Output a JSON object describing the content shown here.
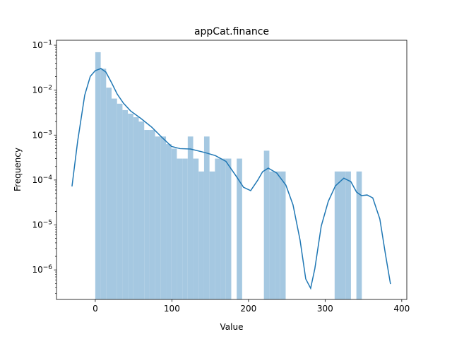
{
  "chart_data": {
    "type": "histogram",
    "title": "appCat.finance",
    "xlabel": "Value",
    "ylabel": "Frequency",
    "bins": [
      0,
      7.1,
      14.2,
      21.3,
      28.4,
      35.5,
      42.6,
      49.7,
      56.8,
      63.9,
      71,
      78.1,
      85.2,
      92.3,
      99.4,
      106.5,
      113.6,
      120.7,
      127.8,
      134.9,
      142,
      149.1,
      156.2,
      163.3,
      170.4,
      177.5,
      184.6,
      191.7,
      198.8,
      205.9,
      213,
      220.1,
      227.2,
      234.3,
      241.4,
      248.5,
      255.6,
      262.7,
      269.8,
      276.9,
      284,
      291.1,
      298.2,
      305.3,
      312.4,
      319.5,
      326.6,
      333.7,
      340.8,
      347.9,
      355
    ],
    "values": [
      0.07,
      0.03,
      0.0114,
      0.0065,
      0.005,
      0.0036,
      0.003,
      0.0025,
      0.002,
      0.0013,
      0.0013,
      0.00093,
      0.00093,
      0.00063,
      0.0005,
      0.0003,
      0.0003,
      0.00093,
      0.0003,
      0.000155,
      0.00093,
      0.000155,
      0.0003,
      0.0003,
      0.0003,
      0,
      0.0003,
      0,
      0,
      0,
      0,
      0.00045,
      0.000155,
      0.000155,
      0.000155,
      0,
      0,
      0,
      0,
      0,
      0,
      0,
      0,
      0,
      0.000155,
      0.000155,
      0.000155,
      0,
      0.000155,
      0
    ],
    "color": "#a5c8e1",
    "kde": {
      "color": "#1f77b4",
      "x": [
        -30.4,
        -23.0,
        -13.8,
        -6.5,
        0,
        7.4,
        13.8,
        21.2,
        28.6,
        36.9,
        46.1,
        59.9,
        73.7,
        87.6,
        99.5,
        110.6,
        124.4,
        142.9,
        156.7,
        170.5,
        184.3,
        193.5,
        202.8,
        212,
        218.4,
        225.8,
        236.9,
        248.8,
        258.1,
        267.3,
        274.7,
        281.1,
        286.6,
        294.9,
        304.1,
        313.4,
        324.4,
        333.6,
        341,
        347.5,
        354.8,
        362.2,
        371.4,
        378.8,
        385.3
      ],
      "values": [
        7.2e-05,
        0.00073,
        0.0077,
        0.0203,
        0.0272,
        0.0303,
        0.0253,
        0.0147,
        0.0082,
        0.0051,
        0.00345,
        0.00232,
        0.0015,
        0.00087,
        0.00056,
        0.0005,
        0.00049,
        0.00041,
        0.00035,
        0.00026,
        0.000119,
        6.9e-05,
        5.8e-05,
        9.9e-05,
        0.000153,
        0.000184,
        0.000143,
        7.7e-05,
        2.8e-05,
        4.6e-06,
        6.3e-07,
        3.9e-07,
        1.07e-06,
        9.4e-06,
        3.35e-05,
        7.4e-05,
        0.00011,
        9.2e-05,
        5.4e-05,
        4.5e-05,
        4.65e-05,
        4e-05,
        1.36e-05,
        2.2e-06,
        4.85e-07
      ]
    },
    "xlim": [
      -50.6,
      406.6
    ],
    "xticks": [
      0,
      100,
      200,
      300,
      400
    ],
    "ylim": [
      2.2e-07,
      0.129
    ],
    "yscale": "log",
    "yticks": [
      {
        "value": 1e-06,
        "label": "10−6"
      },
      {
        "value": 1e-05,
        "label": "10−5"
      },
      {
        "value": 0.0001,
        "label": "10−4"
      },
      {
        "value": 0.001,
        "label": "10−3"
      },
      {
        "value": 0.01,
        "label": "10−2"
      },
      {
        "value": 0.1,
        "label": "10−1"
      }
    ]
  }
}
